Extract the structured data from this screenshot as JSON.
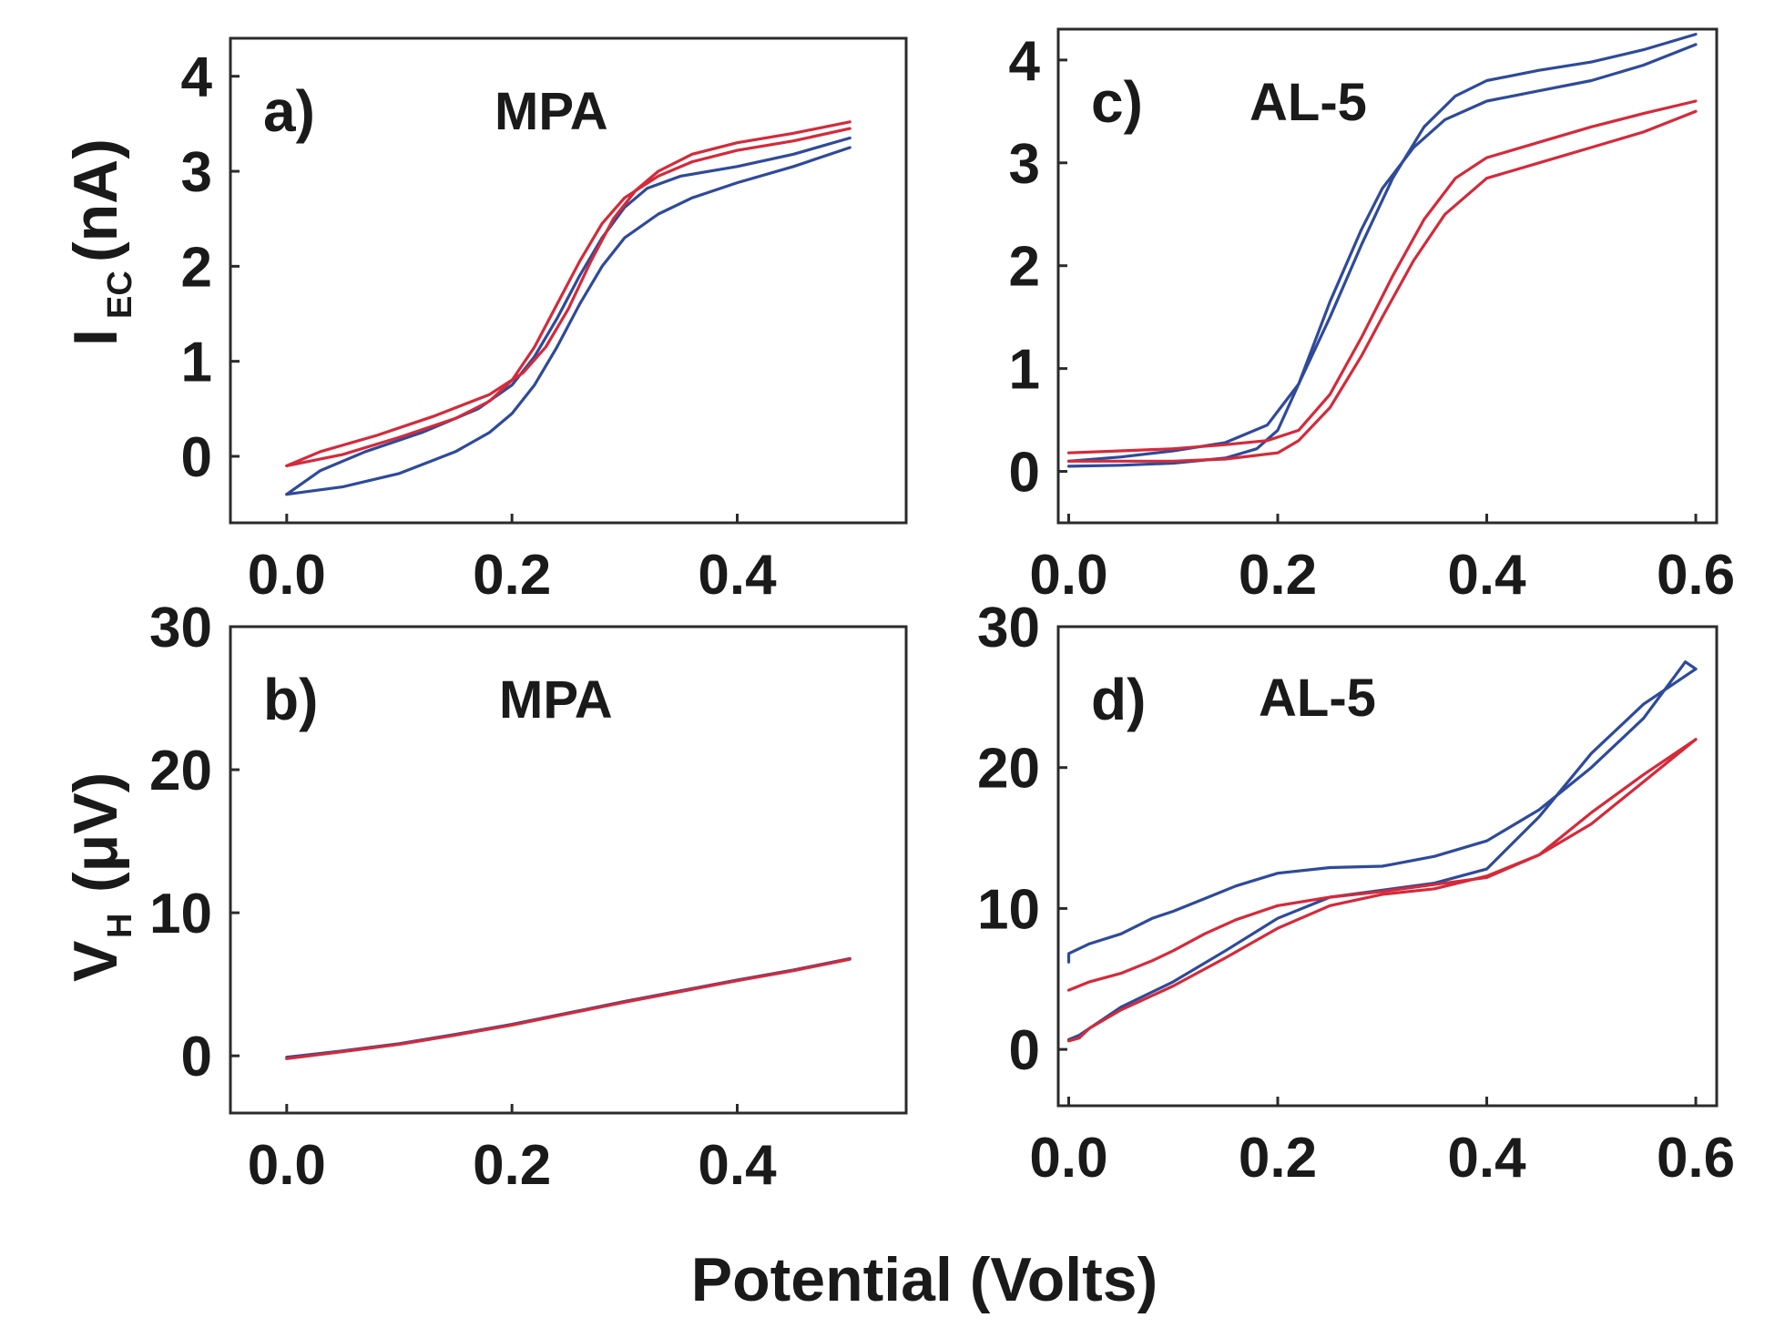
{
  "chart_data": [
    {
      "panel": "a)",
      "name": "MPA",
      "type": "line",
      "xlim": [
        -0.05,
        0.55
      ],
      "ylim": [
        -0.7,
        4.4
      ],
      "xticks": [
        0.0,
        0.2,
        0.4
      ],
      "xtick_labels": [
        "0.0",
        "0.2",
        "0.4"
      ],
      "yticks": [
        0,
        1,
        2,
        3,
        4
      ],
      "ytick_labels": [
        "0",
        "1",
        "2",
        "3",
        "4"
      ],
      "xlabel": "",
      "series": [
        {
          "name": "blue-forward",
          "color": "#2e4a9a",
          "x": [
            0.0,
            0.05,
            0.1,
            0.15,
            0.18,
            0.2,
            0.22,
            0.24,
            0.26,
            0.28,
            0.3,
            0.33,
            0.36,
            0.4,
            0.45,
            0.5
          ],
          "y": [
            -0.4,
            -0.32,
            -0.18,
            0.05,
            0.25,
            0.45,
            0.75,
            1.15,
            1.6,
            2.0,
            2.3,
            2.55,
            2.72,
            2.88,
            3.05,
            3.25
          ]
        },
        {
          "name": "blue-reverse",
          "color": "#2e4a9a",
          "x": [
            0.5,
            0.45,
            0.4,
            0.35,
            0.32,
            0.3,
            0.28,
            0.26,
            0.24,
            0.22,
            0.2,
            0.17,
            0.12,
            0.07,
            0.03,
            0.0
          ],
          "y": [
            3.35,
            3.18,
            3.05,
            2.95,
            2.82,
            2.62,
            2.3,
            1.9,
            1.45,
            1.05,
            0.75,
            0.5,
            0.25,
            0.05,
            -0.15,
            -0.4
          ]
        },
        {
          "name": "red-forward",
          "color": "#d42a3a",
          "x": [
            0.0,
            0.05,
            0.1,
            0.15,
            0.18,
            0.2,
            0.22,
            0.24,
            0.26,
            0.28,
            0.3,
            0.33,
            0.36,
            0.4,
            0.45,
            0.5
          ],
          "y": [
            -0.1,
            0.02,
            0.2,
            0.4,
            0.58,
            0.8,
            1.15,
            1.6,
            2.05,
            2.45,
            2.72,
            2.95,
            3.1,
            3.22,
            3.32,
            3.45
          ]
        },
        {
          "name": "red-reverse",
          "color": "#d42a3a",
          "x": [
            0.5,
            0.45,
            0.4,
            0.36,
            0.33,
            0.31,
            0.29,
            0.27,
            0.25,
            0.23,
            0.21,
            0.18,
            0.13,
            0.08,
            0.03,
            0.0
          ],
          "y": [
            3.52,
            3.4,
            3.3,
            3.18,
            3.0,
            2.8,
            2.5,
            2.05,
            1.55,
            1.15,
            0.88,
            0.65,
            0.42,
            0.22,
            0.05,
            -0.1
          ]
        }
      ]
    },
    {
      "panel": "c)",
      "name": "AL-5",
      "type": "line",
      "xlim": [
        -0.01,
        0.62
      ],
      "ylim": [
        -0.5,
        4.3
      ],
      "xticks": [
        0.0,
        0.2,
        0.4,
        0.6
      ],
      "xtick_labels": [
        "0.0",
        "0.2",
        "0.4",
        "0.6"
      ],
      "yticks": [
        0,
        1,
        2,
        3,
        4
      ],
      "ytick_labels": [
        "0",
        "1",
        "2",
        "3",
        "4"
      ],
      "xlabel": "",
      "series": [
        {
          "name": "blue-forward",
          "color": "#2e4a9a",
          "x": [
            0.0,
            0.05,
            0.1,
            0.15,
            0.18,
            0.2,
            0.22,
            0.25,
            0.28,
            0.3,
            0.33,
            0.36,
            0.4,
            0.45,
            0.5,
            0.55,
            0.6
          ],
          "y": [
            0.05,
            0.06,
            0.08,
            0.13,
            0.22,
            0.4,
            0.85,
            1.65,
            2.35,
            2.75,
            3.15,
            3.42,
            3.6,
            3.7,
            3.8,
            3.95,
            4.15
          ]
        },
        {
          "name": "blue-reverse",
          "color": "#2e4a9a",
          "x": [
            0.6,
            0.55,
            0.5,
            0.45,
            0.4,
            0.37,
            0.34,
            0.31,
            0.28,
            0.25,
            0.22,
            0.19,
            0.15,
            0.1,
            0.05,
            0.0
          ],
          "y": [
            4.25,
            4.1,
            3.98,
            3.9,
            3.8,
            3.65,
            3.35,
            2.85,
            2.2,
            1.5,
            0.85,
            0.45,
            0.28,
            0.2,
            0.14,
            0.1
          ]
        },
        {
          "name": "red-forward",
          "color": "#d42a3a",
          "x": [
            0.0,
            0.05,
            0.1,
            0.15,
            0.2,
            0.22,
            0.25,
            0.28,
            0.3,
            0.33,
            0.36,
            0.4,
            0.45,
            0.5,
            0.55,
            0.6
          ],
          "y": [
            0.1,
            0.1,
            0.1,
            0.12,
            0.18,
            0.3,
            0.62,
            1.12,
            1.5,
            2.05,
            2.5,
            2.85,
            3.0,
            3.15,
            3.3,
            3.5
          ]
        },
        {
          "name": "red-reverse",
          "color": "#d42a3a",
          "x": [
            0.6,
            0.55,
            0.5,
            0.45,
            0.4,
            0.37,
            0.34,
            0.31,
            0.28,
            0.25,
            0.22,
            0.19,
            0.15,
            0.1,
            0.05,
            0.0
          ],
          "y": [
            3.6,
            3.48,
            3.35,
            3.2,
            3.05,
            2.85,
            2.45,
            1.9,
            1.3,
            0.75,
            0.4,
            0.3,
            0.26,
            0.22,
            0.2,
            0.18
          ]
        }
      ]
    },
    {
      "panel": "b)",
      "name": "MPA",
      "type": "line",
      "xlim": [
        -0.05,
        0.55
      ],
      "ylim": [
        -4,
        30
      ],
      "xticks": [
        0.0,
        0.2,
        0.4
      ],
      "xtick_labels": [
        "0.0",
        "0.2",
        "0.4"
      ],
      "yticks": [
        0,
        10,
        20,
        30
      ],
      "ytick_labels": [
        "0",
        "10",
        "20",
        "30"
      ],
      "xlabel": "",
      "series": [
        {
          "name": "blue",
          "color": "#2e4a9a",
          "x": [
            0.0,
            0.05,
            0.1,
            0.15,
            0.2,
            0.25,
            0.3,
            0.35,
            0.4,
            0.45,
            0.5
          ],
          "y": [
            -0.1,
            0.35,
            0.85,
            1.5,
            2.2,
            3.0,
            3.8,
            4.55,
            5.3,
            6.0,
            6.8
          ]
        },
        {
          "name": "red",
          "color": "#d42a3a",
          "x": [
            0.0,
            0.05,
            0.1,
            0.15,
            0.2,
            0.25,
            0.3,
            0.35,
            0.4,
            0.45,
            0.5
          ],
          "y": [
            -0.2,
            0.3,
            0.8,
            1.45,
            2.15,
            2.95,
            3.75,
            4.5,
            5.25,
            5.95,
            6.75
          ]
        }
      ]
    },
    {
      "panel": "d)",
      "name": "AL-5",
      "type": "line",
      "xlim": [
        -0.01,
        0.62
      ],
      "ylim": [
        -4,
        30
      ],
      "xticks": [
        0.0,
        0.2,
        0.4,
        0.6
      ],
      "xtick_labels": [
        "0.0",
        "0.2",
        "0.4",
        "0.6"
      ],
      "yticks": [
        0,
        10,
        20,
        30
      ],
      "ytick_labels": [
        "0",
        "10",
        "20",
        "30"
      ],
      "xlabel": "",
      "series": [
        {
          "name": "blue-upper",
          "color": "#2e4a9a",
          "x": [
            0.0,
            0.0,
            0.02,
            0.05,
            0.08,
            0.1,
            0.13,
            0.16,
            0.2,
            0.25,
            0.3,
            0.35,
            0.4,
            0.45,
            0.5,
            0.55,
            0.59,
            0.6
          ],
          "y": [
            6.2,
            6.8,
            7.5,
            8.2,
            9.3,
            9.8,
            10.7,
            11.6,
            12.5,
            12.9,
            13.0,
            13.7,
            14.8,
            17.0,
            20.0,
            23.5,
            27.5,
            27.0
          ]
        },
        {
          "name": "blue-lower",
          "color": "#2e4a9a",
          "x": [
            0.6,
            0.55,
            0.5,
            0.45,
            0.4,
            0.35,
            0.3,
            0.25,
            0.2,
            0.15,
            0.1,
            0.05,
            0.02,
            0.01,
            0.0
          ],
          "y": [
            27.0,
            24.5,
            21.0,
            16.5,
            12.8,
            11.8,
            11.3,
            10.8,
            9.3,
            7.0,
            4.8,
            3.0,
            1.5,
            1.0,
            0.7
          ]
        },
        {
          "name": "red-upper",
          "color": "#d42a3a",
          "x": [
            0.0,
            0.0,
            0.02,
            0.05,
            0.08,
            0.1,
            0.13,
            0.16,
            0.2,
            0.25,
            0.3,
            0.35,
            0.4,
            0.45,
            0.5,
            0.55,
            0.6
          ],
          "y": [
            4.2,
            4.2,
            4.8,
            5.4,
            6.3,
            7.0,
            8.2,
            9.2,
            10.2,
            10.8,
            11.2,
            11.7,
            12.2,
            13.8,
            16.0,
            19.0,
            22.0
          ]
        },
        {
          "name": "red-lower",
          "color": "#d42a3a",
          "x": [
            0.6,
            0.55,
            0.5,
            0.45,
            0.4,
            0.35,
            0.3,
            0.25,
            0.2,
            0.15,
            0.1,
            0.05,
            0.02,
            0.01,
            0.0
          ],
          "y": [
            22.0,
            19.5,
            16.8,
            13.8,
            12.3,
            11.4,
            11.0,
            10.2,
            8.6,
            6.5,
            4.5,
            2.8,
            1.5,
            0.8,
            0.6
          ]
        }
      ]
    }
  ],
  "labels": {
    "ylabel_top_main": "I",
    "ylabel_top_sub": "EC",
    "ylabel_top_unit": "(nA)",
    "ylabel_bottom_main": "V",
    "ylabel_bottom_sub": "H",
    "ylabel_bottom_unit": "(μV)",
    "xlabel_shared": "Potential (Volts)"
  }
}
